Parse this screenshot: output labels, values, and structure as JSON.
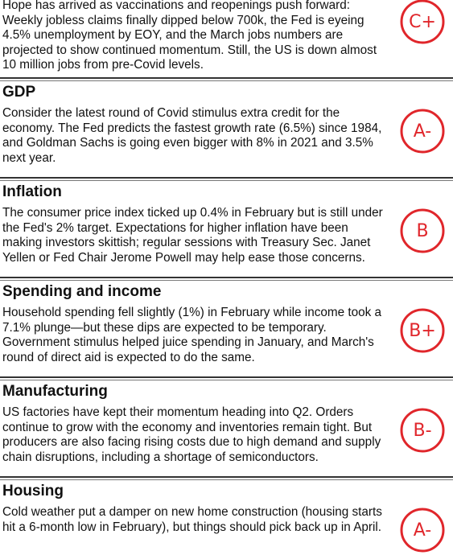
{
  "intro": {
    "body": "Hope has arrived as vaccinations and reopenings push forward: Weekly jobless claims finally dipped below 700k, the Fed is eyeing 4.5% unemployment by EOY, and the March jobs numbers are projected to show continued momentum. Still, the US is down almost 10 million jobs from pre-Covid levels.",
    "grade": "C+"
  },
  "sections": [
    {
      "title": "GDP",
      "body": "Consider the latest round of Covid stimulus extra credit for the economy. The Fed predicts the fastest growth rate (6.5%) since 1984, and Goldman Sachs is going even bigger with 8% in 2021 and 3.5% next year.",
      "grade": "A-"
    },
    {
      "title": "Inflation",
      "body": "The consumer price index ticked up 0.4% in February but is still under the Fed's 2% target. Expectations for higher inflation have been making investors skittish; regular sessions with Treasury Sec. Janet Yellen or Fed Chair Jerome Powell may help ease those concerns.",
      "grade": "B"
    },
    {
      "title": "Spending and income",
      "body": "Household spending fell slightly (1%) in February while income took a 7.1% plunge—but these dips are expected to be temporary. Government stimulus helped juice spending in January, and March's round of direct aid is expected to do the same.",
      "grade": "B+"
    },
    {
      "title": "Manufacturing",
      "body": "US factories have kept their momentum heading into Q2. Orders continue to grow with the economy and inventories remain tight. But producers are also facing rising costs due to high demand and supply chain disruptions, including a shortage of semiconductors.",
      "grade": "B-"
    },
    {
      "title": "Housing",
      "body": "Cold weather put a damper on new home construction (housing starts hit a 6-month low in February), but things should pick back up in April.",
      "grade": "A-"
    }
  ]
}
